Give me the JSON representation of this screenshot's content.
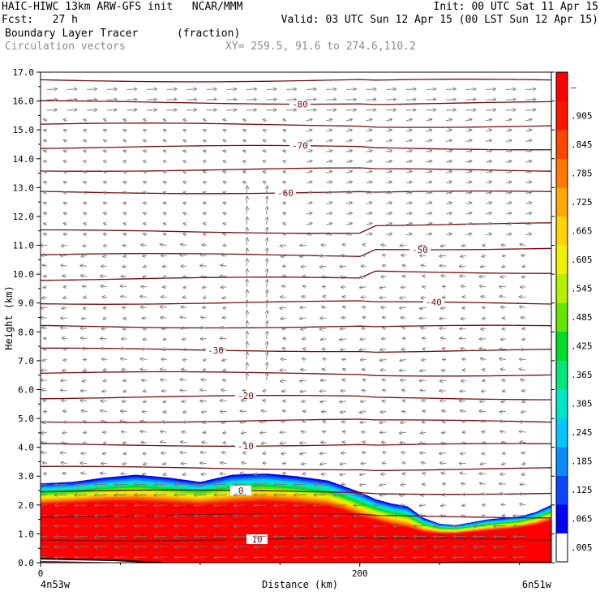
{
  "header": {
    "line1_left": "HAIC-HIWC 13km ARW-GFS init   NCAR/MMM",
    "line1_right": "Init: 00 UTC Sat 11 Apr 15",
    "line2_left": "Fcst:   27 h",
    "line2_right": "Valid: 03 UTC Sun 12 Apr 15 (00 LST Sun 12 Apr 15)",
    "field_name": "Boundary Layer Tracer",
    "field_units": "(fraction)",
    "vector_label": "Circulation vectors",
    "xy_label": "XY= 259.5, 91.6 to 274.6,110.2"
  },
  "chart_data": {
    "type": "cross-section",
    "title": "Boundary Layer Tracer",
    "ylabel": "Height (km)",
    "xlabel": "Distance (km)",
    "ylim": [
      0,
      17
    ],
    "xlim": [
      0,
      320
    ],
    "y_ticks": [
      "0.0",
      "1.0",
      "2.0",
      "3.0",
      "4.0",
      "5.0",
      "6.0",
      "7.0",
      "8.0",
      "9.0",
      "10.0",
      "11.0",
      "12.0",
      "13.0",
      "14.0",
      "15.0",
      "16.0",
      "17.0"
    ],
    "x_ticks": [
      {
        "value": 0,
        "label": "0"
      },
      {
        "value": 200,
        "label": "200"
      }
    ],
    "x_endpoint_labels": {
      "left": "4n53w",
      "right": "6n51w"
    },
    "colorbar": {
      "labels": [
        ".005",
        ".065",
        ".125",
        ".185",
        ".245",
        ".305",
        ".365",
        ".425",
        ".485",
        ".545",
        ".605",
        ".665",
        ".725",
        ".785",
        ".845",
        ".905",
        "–"
      ],
      "colors": [
        "#ffffff",
        "#0000ff",
        "#0a46ff",
        "#0a8cff",
        "#00c8ff",
        "#00e6c8",
        "#00e678",
        "#00dc28",
        "#64e600",
        "#b4f000",
        "#f0f000",
        "#ffd200",
        "#ffaa00",
        "#ff7800",
        "#ff4600",
        "#ff1400",
        "#ff0000"
      ]
    },
    "temperature_contours": [
      {
        "label": "-80",
        "value": -80
      },
      {
        "label": "-70",
        "value": -70
      },
      {
        "label": "-60",
        "value": -60
      },
      {
        "label": "-50",
        "value": -50
      },
      {
        "label": "-40",
        "value": -40
      },
      {
        "label": "-30",
        "value": -30
      },
      {
        "label": "-20",
        "value": -20
      },
      {
        "label": "-10",
        "value": -10
      },
      {
        "label": "0",
        "value": 0
      },
      {
        "label": "10",
        "value": 10
      }
    ],
    "tracer_top_profile": {
      "x": [
        0,
        20,
        40,
        60,
        80,
        100,
        120,
        140,
        160,
        180,
        190,
        200,
        210,
        220,
        230,
        240,
        250,
        260,
        270,
        280,
        290,
        300,
        310,
        320
      ],
      "top_km": [
        2.75,
        2.8,
        2.95,
        3.05,
        2.95,
        2.8,
        3.05,
        3.1,
        3.0,
        2.85,
        2.65,
        2.45,
        2.2,
        2.05,
        1.95,
        1.55,
        1.35,
        1.3,
        1.4,
        1.5,
        1.55,
        1.6,
        1.75,
        2.0
      ],
      "red_top_km": [
        2.0,
        2.05,
        2.1,
        2.1,
        2.05,
        2.0,
        2.05,
        2.1,
        2.05,
        1.95,
        1.8,
        1.6,
        1.45,
        1.3,
        1.2,
        1.05,
        1.0,
        1.0,
        1.05,
        1.1,
        1.15,
        1.2,
        1.3,
        1.45
      ]
    }
  }
}
